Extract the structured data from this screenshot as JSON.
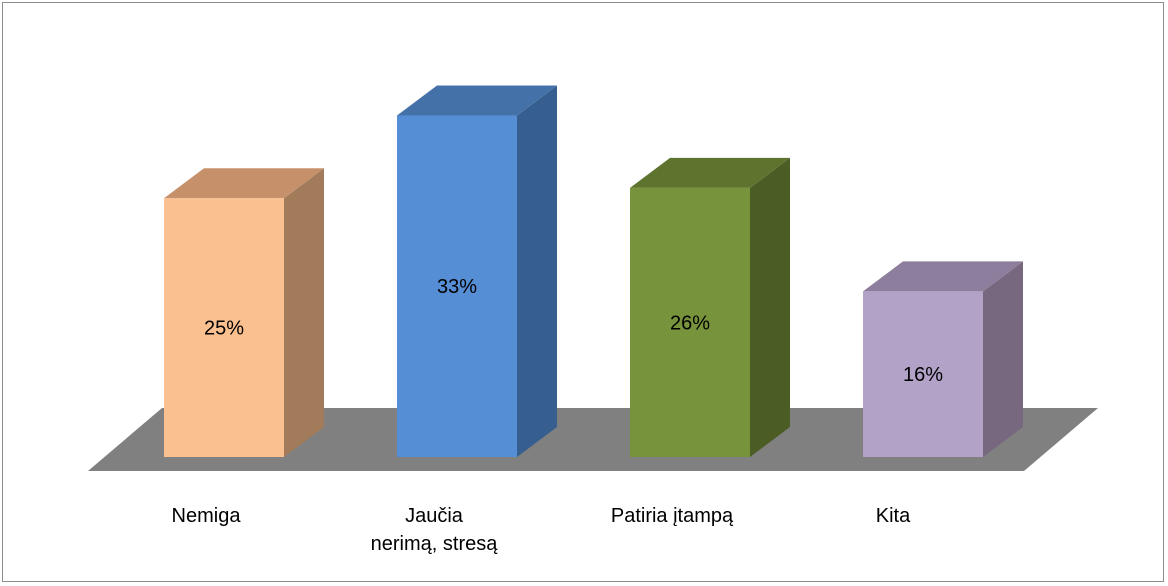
{
  "chart_data": {
    "type": "bar",
    "style": "3d-column",
    "title": "",
    "xlabel": "",
    "ylabel": "",
    "ylim": [
      0,
      100
    ],
    "grid": false,
    "legend": "none",
    "categories": [
      [
        "Nemiga"
      ],
      [
        "Jaučia",
        "nerimą, stresą"
      ],
      [
        "Patiria įtampą"
      ],
      [
        "Kita"
      ]
    ],
    "values": [
      25,
      33,
      26,
      16
    ],
    "data_labels": [
      "25%",
      "33%",
      "26%",
      "16%"
    ],
    "colors": {
      "front": [
        "#fac090",
        "#558ed5",
        "#77933c",
        "#b3a2c7"
      ],
      "side": [
        "#a27b5b",
        "#365f8f",
        "#4b5d25",
        "#77687f"
      ],
      "top": [
        "#c5906a",
        "#4472a8",
        "#5e742e",
        "#8c7e9c"
      ],
      "floor": "#808080",
      "frame": "#8c8c8c"
    }
  }
}
